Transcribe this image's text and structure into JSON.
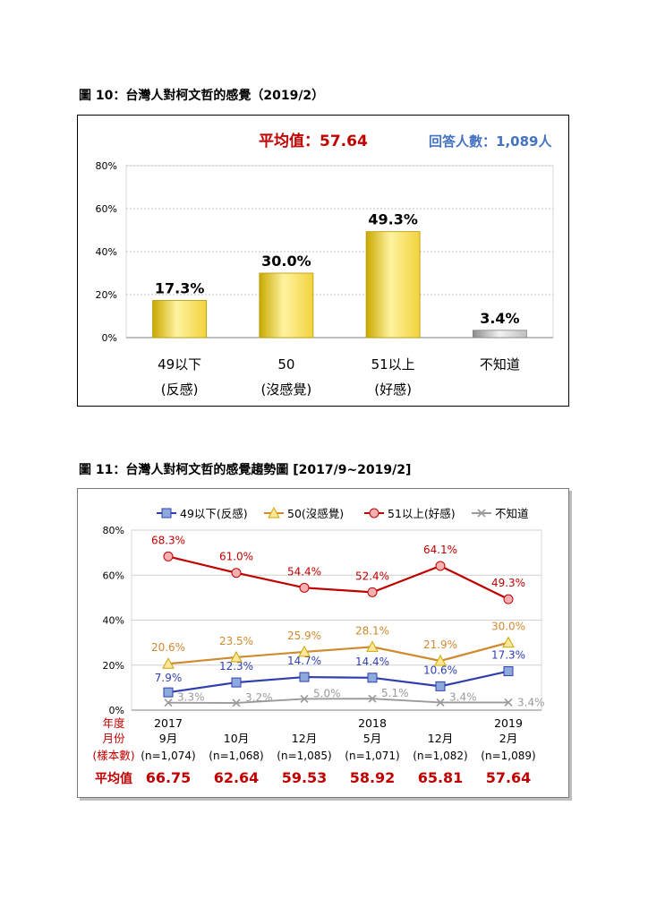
{
  "fig10": {
    "title": "圖 10：台灣人對柯文哲的感覺（2019/2）",
    "mean_label": "平均值：57.64",
    "respondents_label": "回答人數：1,089人",
    "colors": {
      "bar": "#f2d23c",
      "bar_dark": "#c9a800",
      "bar_na": "#bfbfbf",
      "mean": "#c00000",
      "respondents": "#4472c4"
    }
  },
  "fig11": {
    "title": "圖 11：台灣人對柯文哲的感覺趨勢圖 [2017/9~2019/2]",
    "row_labels": {
      "year": "年度",
      "month": "月份",
      "sample": "(樣本數)",
      "mean": "平均值"
    },
    "colors": {
      "neg": "#2f3fae",
      "neu": "#d08a30",
      "pos": "#c00000",
      "na": "#9a9a9a",
      "neg_marker": "#8ea9db",
      "neu_marker": "#ffe699",
      "pos_marker": "#f4b0b0"
    }
  },
  "chart_data": [
    {
      "type": "bar",
      "categories": [
        "49以下",
        "50",
        "51以上",
        "不知道"
      ],
      "sublabels": [
        "(反感)",
        "(沒感覺)",
        "(好感)",
        ""
      ],
      "values": [
        17.3,
        30.0,
        49.3,
        3.4
      ],
      "value_labels": [
        "17.3%",
        "30.0%",
        "49.3%",
        "3.4%"
      ],
      "ylim": [
        0,
        80
      ],
      "yticks": [
        "0%",
        "20%",
        "40%",
        "60%",
        "80%"
      ],
      "grid": true
    },
    {
      "type": "line",
      "x": [
        "2017/9",
        "10",
        "12",
        "2018/5",
        "12",
        "2019/2"
      ],
      "years": [
        "2017",
        "",
        "",
        "2018",
        "",
        "2019"
      ],
      "months": [
        "9月",
        "10月",
        "12月",
        "5月",
        "12月",
        "2月"
      ],
      "samples": [
        "(n=1,074)",
        "(n=1,068)",
        "(n=1,085)",
        "(n=1,071)",
        "(n=1,082)",
        "(n=1,089)"
      ],
      "means": [
        "66.75",
        "62.64",
        "59.53",
        "58.92",
        "65.81",
        "57.64"
      ],
      "ylim": [
        0,
        80
      ],
      "yticks": [
        "0%",
        "20%",
        "40%",
        "60%",
        "80%"
      ],
      "legend_position": "top",
      "series": [
        {
          "name": "49以下(反感)",
          "values": [
            7.9,
            12.3,
            14.7,
            14.4,
            10.6,
            17.3
          ],
          "labels": [
            "7.9%",
            "12.3%",
            "14.7%",
            "14.4%",
            "10.6%",
            "17.3%"
          ]
        },
        {
          "name": "50(沒感覺)",
          "values": [
            20.6,
            23.5,
            25.9,
            28.1,
            21.9,
            30.0
          ],
          "labels": [
            "20.6%",
            "23.5%",
            "25.9%",
            "28.1%",
            "21.9%",
            "30.0%"
          ]
        },
        {
          "name": "51以上(好感)",
          "values": [
            68.3,
            61.0,
            54.4,
            52.4,
            64.1,
            49.3
          ],
          "labels": [
            "68.3%",
            "61.0%",
            "54.4%",
            "52.4%",
            "64.1%",
            "49.3%"
          ]
        },
        {
          "name": "不知道",
          "values": [
            3.3,
            3.2,
            5.0,
            5.1,
            3.4,
            3.4
          ],
          "labels": [
            "3.3%",
            "3.2%",
            "5.0%",
            "5.1%",
            "3.4%",
            "3.4%"
          ]
        }
      ]
    }
  ]
}
